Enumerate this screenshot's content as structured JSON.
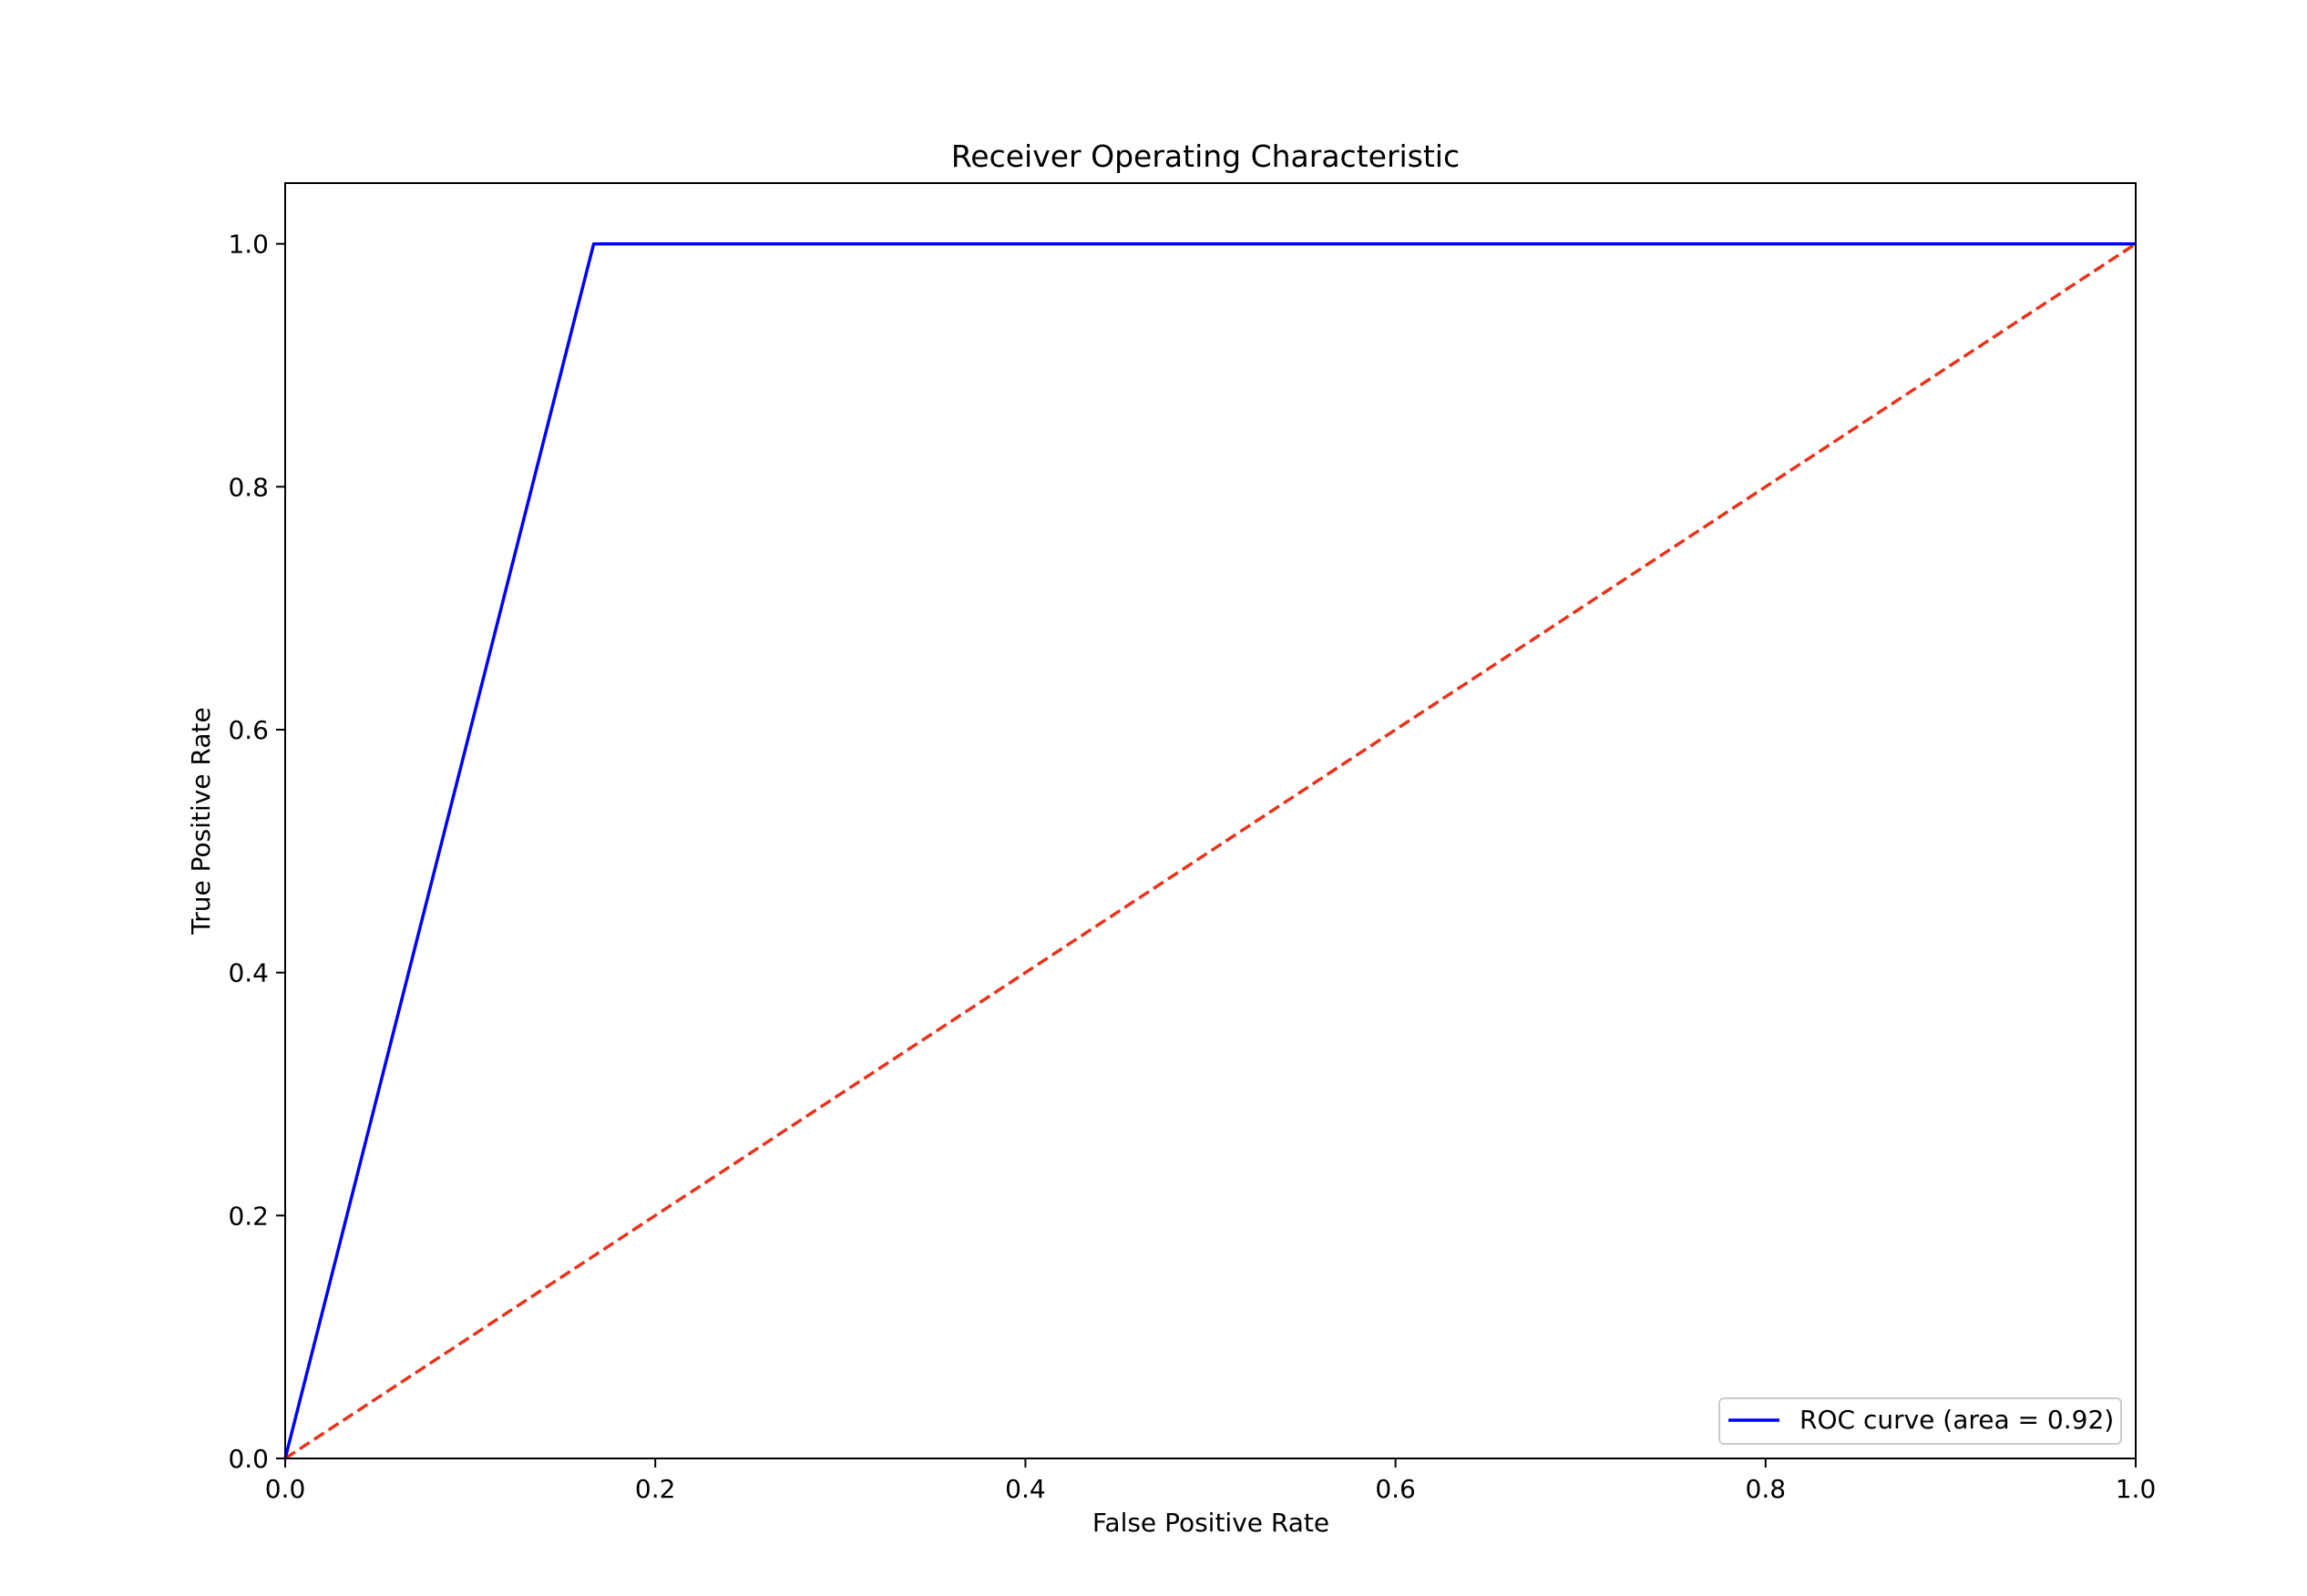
{
  "chart_data": {
    "type": "line",
    "title": "Receiver Operating Characteristic",
    "xlabel": "False Positive Rate",
    "ylabel": "True Positive Rate",
    "xlim": [
      0.0,
      1.0
    ],
    "ylim": [
      0.0,
      1.05
    ],
    "xticks": [
      "0.0",
      "0.2",
      "0.4",
      "0.6",
      "0.8",
      "1.0"
    ],
    "yticks": [
      "0.0",
      "0.2",
      "0.4",
      "0.6",
      "0.8",
      "1.0"
    ],
    "grid": false,
    "legend_position": "lower-right",
    "series": [
      {
        "name": "ROC curve (area = 0.92)",
        "style": "solid",
        "color": "#0000ff",
        "x": [
          0.0,
          0.1667,
          1.0
        ],
        "y": [
          0.0,
          1.0,
          1.0
        ]
      },
      {
        "style": "dashed",
        "color": "#e8341c",
        "x": [
          0.0,
          1.0
        ],
        "y": [
          0.0,
          1.0
        ]
      }
    ]
  }
}
